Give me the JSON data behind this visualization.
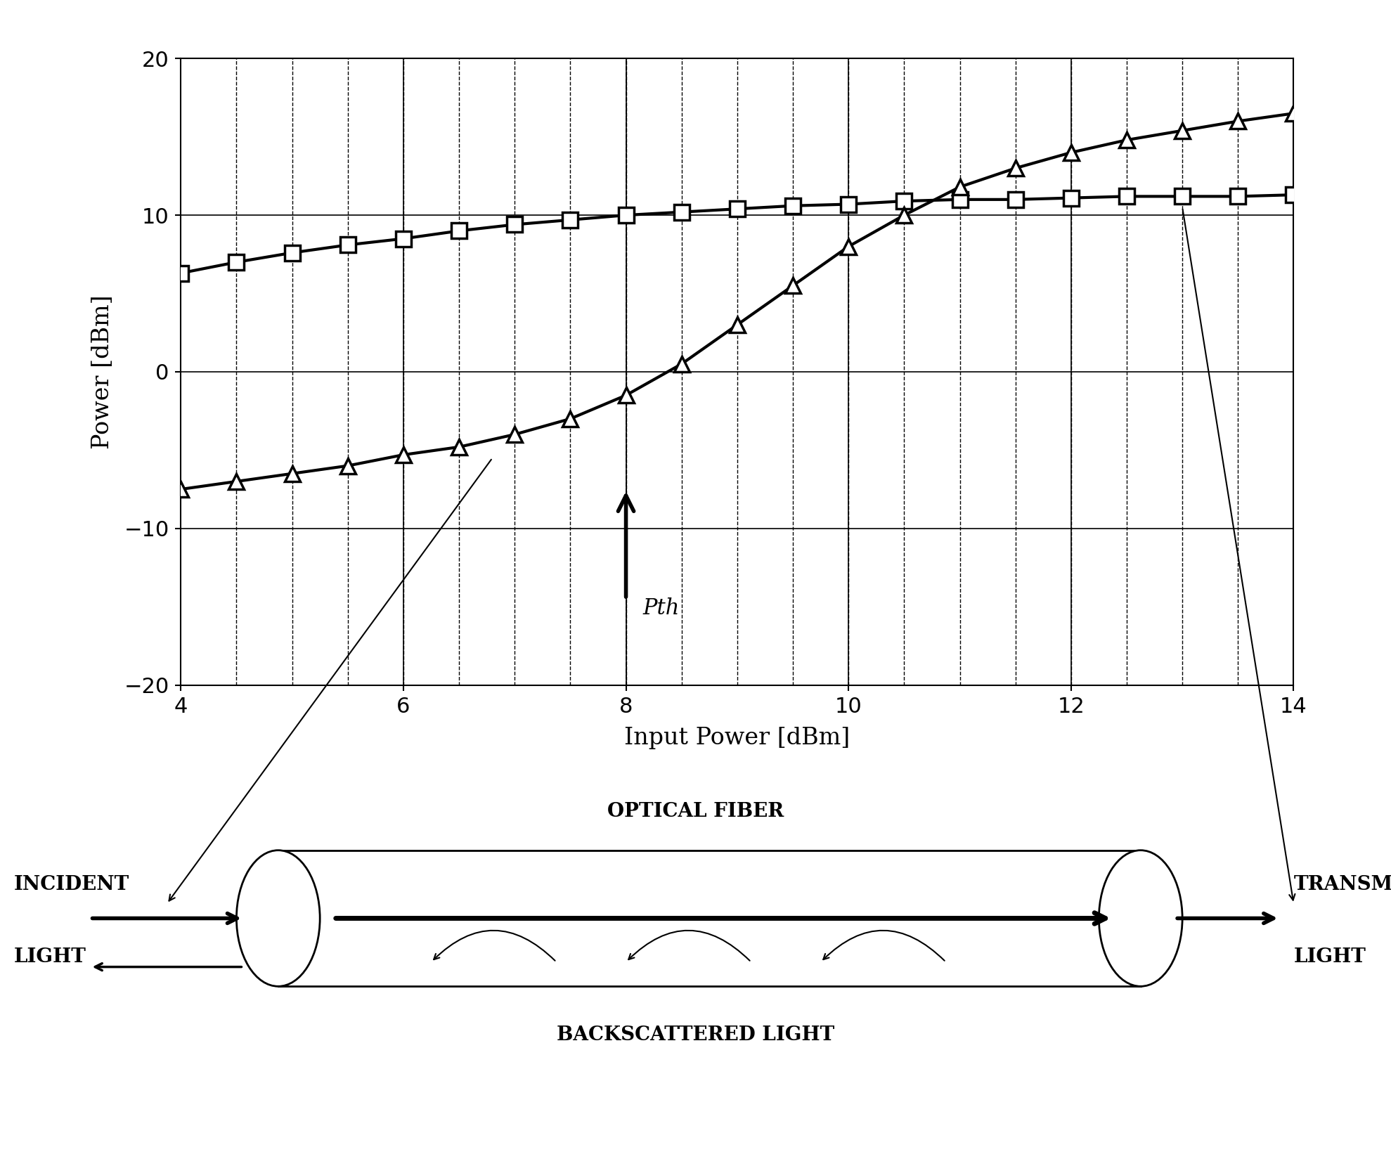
{
  "title": "",
  "xlabel": "Input Power [dBm]",
  "ylabel": "Power [dBm]",
  "xlim": [
    4,
    14
  ],
  "ylim": [
    -20,
    20
  ],
  "xticks": [
    4,
    6,
    8,
    10,
    12,
    14
  ],
  "yticks": [
    -20,
    -10,
    0,
    10,
    20
  ],
  "bg_color": "#ffffff",
  "line_color": "#000000",
  "transmitted_x": [
    4.0,
    4.5,
    5.0,
    5.5,
    6.0,
    6.5,
    7.0,
    7.5,
    8.0,
    8.5,
    9.0,
    9.5,
    10.0,
    10.5,
    11.0,
    11.5,
    12.0,
    12.5,
    13.0,
    13.5,
    14.0
  ],
  "transmitted_y": [
    6.3,
    7.0,
    7.6,
    8.1,
    8.5,
    9.0,
    9.4,
    9.7,
    10.0,
    10.2,
    10.4,
    10.6,
    10.7,
    10.9,
    11.0,
    11.0,
    11.1,
    11.2,
    11.2,
    11.2,
    11.3
  ],
  "backscattered_x": [
    4.0,
    4.5,
    5.0,
    5.5,
    6.0,
    6.5,
    7.0,
    7.5,
    8.0,
    8.5,
    9.0,
    9.5,
    10.0,
    10.5,
    11.0,
    11.5,
    12.0,
    12.5,
    13.0,
    13.5,
    14.0
  ],
  "backscattered_y": [
    -7.5,
    -7.0,
    -6.5,
    -6.0,
    -5.3,
    -4.8,
    -4.0,
    -3.0,
    -1.5,
    0.5,
    3.0,
    5.5,
    8.0,
    10.0,
    11.8,
    13.0,
    14.0,
    14.8,
    15.4,
    16.0,
    16.5
  ],
  "pth_x": 8.0,
  "fiber_label": "OPTICAL FIBER",
  "incident_label1": "INCIDENT",
  "incident_label2": "LIGHT",
  "transmitted_label1": "TRANSMITTED",
  "transmitted_label2": "LIGHT",
  "backscattered_label": "BACKSCATTERED LIGHT",
  "pth_label": "Pth"
}
